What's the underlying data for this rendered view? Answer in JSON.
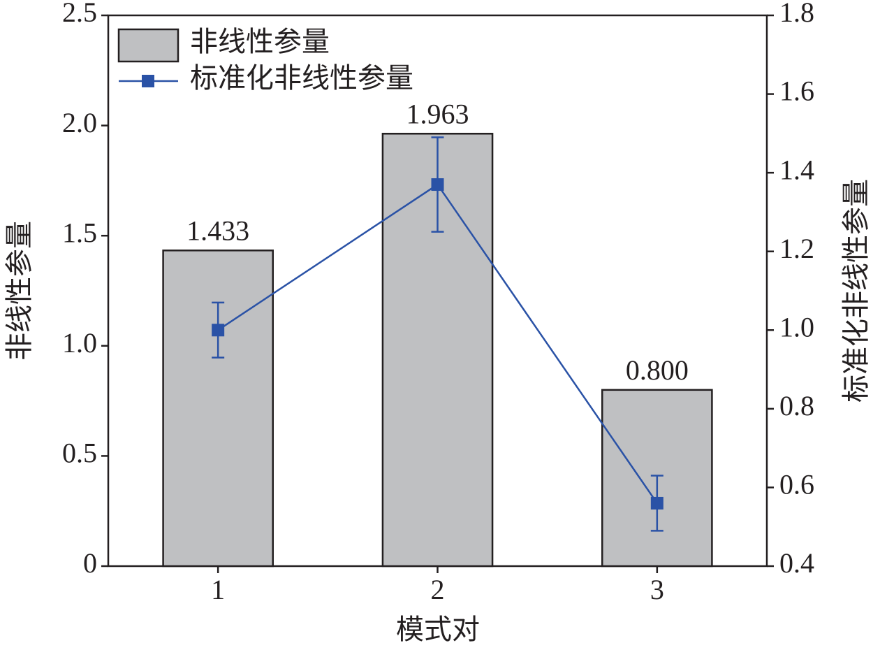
{
  "chart_data": {
    "type": "bar-line",
    "xlabel": "模式对",
    "ylabel": "非线性参量",
    "y2label": "标准化非线性参量",
    "categories": [
      "1",
      "2",
      "3"
    ],
    "series": [
      {
        "name": "非线性参量",
        "type": "bar",
        "color": "#bfc0c2",
        "values": [
          1.433,
          1.963,
          0.8
        ],
        "value_labels": [
          "1.433",
          "1.963",
          "0.800"
        ]
      },
      {
        "name": "标准化非线性参量",
        "type": "line",
        "axis": "y2",
        "color": "#2a52a6",
        "values": [
          1.0,
          1.37,
          0.56
        ],
        "errors": [
          0.07,
          0.12,
          0.07
        ]
      }
    ],
    "ylim": [
      0,
      2.5
    ],
    "yticks": [
      0,
      0.5,
      {
        "value": 1,
        "label": "1.0"
      },
      1.5,
      {
        "value": 2,
        "label": "2.0"
      },
      2.5
    ],
    "y2lim": [
      0.4,
      1.8
    ],
    "y2ticks": [
      0.4,
      0.6,
      0.8,
      {
        "value": 1,
        "label": "1.0"
      },
      1.2,
      1.4,
      1.6,
      1.8
    ],
    "legend": "upper left"
  }
}
